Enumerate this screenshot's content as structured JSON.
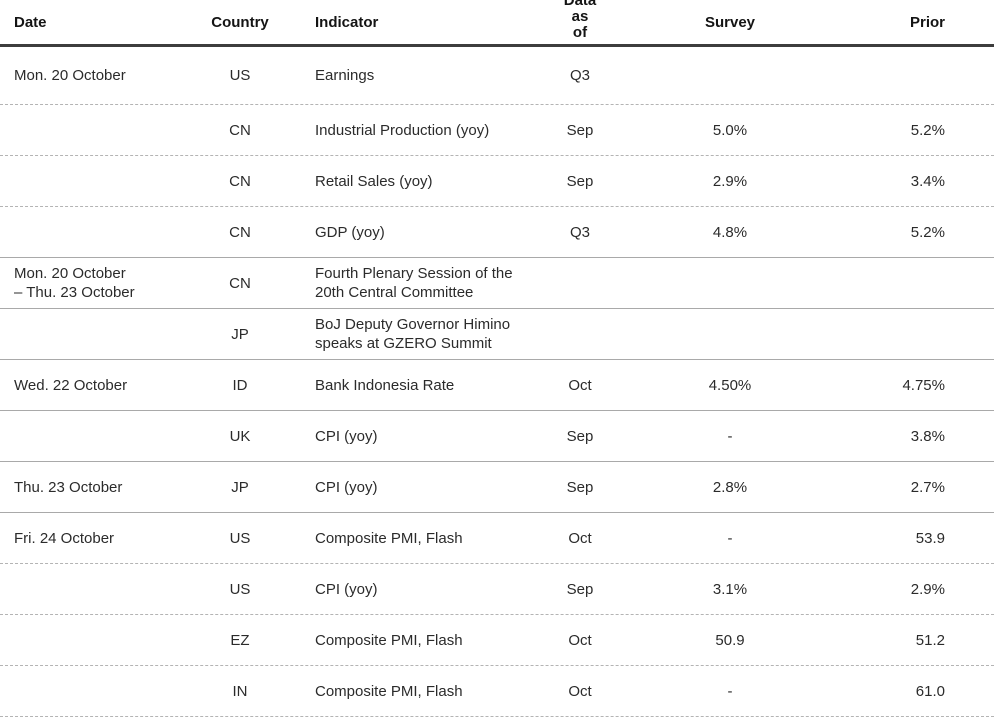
{
  "colors": {
    "background": "#ffffff",
    "header_rule": "#3d3d3d",
    "solid_separator": "#a9a9a9",
    "dashed_separator": "#b4b4b4",
    "text": "#2b2b2b",
    "header_text": "#141414"
  },
  "table": {
    "columns": [
      {
        "key": "date",
        "label": "Date"
      },
      {
        "key": "country",
        "label": "Country"
      },
      {
        "key": "indicator",
        "label": "Indicator"
      },
      {
        "key": "data_as_of",
        "label": "Data\nas\nof"
      },
      {
        "key": "survey",
        "label": "Survey"
      },
      {
        "key": "prior",
        "label": "Prior"
      }
    ],
    "rows": [
      {
        "date": "Mon. 20 October",
        "country": "US",
        "indicator": "Earnings",
        "data_as_of": "Q3",
        "survey": "",
        "prior": "",
        "separator": "dashed"
      },
      {
        "date": "",
        "country": "CN",
        "indicator": "Industrial Production (yoy)",
        "data_as_of": "Sep",
        "survey": "5.0%",
        "prior": "5.2%",
        "separator": "dashed"
      },
      {
        "date": "",
        "country": "CN",
        "indicator": "Retail Sales (yoy)",
        "data_as_of": "Sep",
        "survey": "2.9%",
        "prior": "3.4%",
        "separator": "dashed"
      },
      {
        "date": "",
        "country": "CN",
        "indicator": "GDP (yoy)",
        "data_as_of": "Q3",
        "survey": "4.8%",
        "prior": "5.2%",
        "separator": "solid"
      },
      {
        "date": "Mon. 20 October\n– Thu. 23 October",
        "country": "CN",
        "indicator": "Fourth Plenary Session of the\n20th Central Committee",
        "data_as_of": "",
        "survey": "",
        "prior": "",
        "separator": "solid"
      },
      {
        "date": "",
        "country": "JP",
        "indicator": "BoJ Deputy Governor Himino\nspeaks at GZERO Summit",
        "data_as_of": "",
        "survey": "",
        "prior": "",
        "separator": "solid"
      },
      {
        "date": "Wed. 22 October",
        "country": "ID",
        "indicator": "Bank Indonesia Rate",
        "data_as_of": "Oct",
        "survey": "4.50%",
        "prior": "4.75%",
        "separator": "solid"
      },
      {
        "date": "",
        "country": "UK",
        "indicator": "CPI (yoy)",
        "data_as_of": "Sep",
        "survey": "-",
        "prior": "3.8%",
        "separator": "solid"
      },
      {
        "date": "Thu. 23 October",
        "country": "JP",
        "indicator": "CPI (yoy)",
        "data_as_of": "Sep",
        "survey": "2.8%",
        "prior": "2.7%",
        "separator": "solid"
      },
      {
        "date": "Fri. 24 October",
        "country": "US",
        "indicator": "Composite PMI, Flash",
        "data_as_of": "Oct",
        "survey": "-",
        "prior": "53.9",
        "separator": "dashed"
      },
      {
        "date": "",
        "country": "US",
        "indicator": "CPI (yoy)",
        "data_as_of": "Sep",
        "survey": "3.1%",
        "prior": "2.9%",
        "separator": "dashed"
      },
      {
        "date": "",
        "country": "EZ",
        "indicator": "Composite PMI, Flash",
        "data_as_of": "Oct",
        "survey": "50.9",
        "prior": "51.2",
        "separator": "dashed"
      },
      {
        "date": "",
        "country": "IN",
        "indicator": "Composite PMI, Flash",
        "data_as_of": "Oct",
        "survey": "-",
        "prior": "61.0",
        "separator": "dashed"
      }
    ]
  }
}
